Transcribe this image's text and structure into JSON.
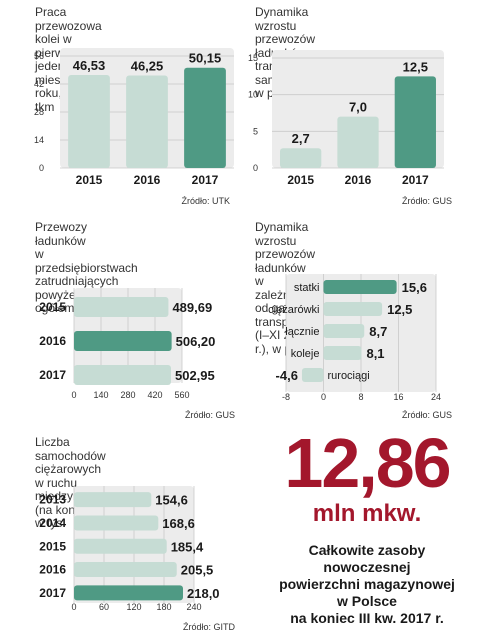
{
  "colors": {
    "light": "#c6dcd4",
    "accent": "#4f9a84",
    "panel": "#ececec",
    "highlight": "#a3172c"
  },
  "chart_data": [
    {
      "id": "c1",
      "type": "bar",
      "title": "Praca przewozowa kolei w pierwszych\njedenastu miesiącach roku, w mld tkm",
      "categories": [
        "2015",
        "2016",
        "2017"
      ],
      "values": [
        46.53,
        46.25,
        50.15
      ],
      "value_labels": [
        "46,53",
        "46,25",
        "50,15"
      ],
      "highlight_index": 2,
      "ylim": [
        0,
        56
      ],
      "yticks": [
        "0",
        "14",
        "28",
        "42",
        "56"
      ],
      "source": "Źródło: UTK"
    },
    {
      "id": "c2",
      "type": "bar",
      "title": "Dynamika wzrostu przewozów\nładunków w transporcie\nsamochodowym, w proc.",
      "categories": [
        "2015",
        "2016",
        "2017"
      ],
      "values": [
        2.7,
        7.0,
        12.5
      ],
      "value_labels": [
        "2,7",
        "7,0",
        "12,5"
      ],
      "highlight_index": 2,
      "ylim": [
        0,
        15
      ],
      "yticks": [
        "0",
        "5",
        "10",
        "15"
      ],
      "source": "Źródło: GUS"
    },
    {
      "id": "c3",
      "type": "bar",
      "orientation": "horizontal",
      "title": "Przewozy ładunków\nw przedsiębiorstwach\nzatrudniających powyżej 9 osób,\nogółem w mln ton",
      "categories": [
        "2015",
        "2016",
        "2017"
      ],
      "values": [
        489.69,
        506.2,
        502.95
      ],
      "value_labels": [
        "489,69",
        "506,20",
        "502,95"
      ],
      "highlight_index": 1,
      "xlim": [
        0,
        560
      ],
      "xticks": [
        "0",
        "140",
        "280",
        "420",
        "560"
      ],
      "source": "Źródło: GUS"
    },
    {
      "id": "c4",
      "type": "bar",
      "orientation": "horizontal",
      "title": "Dynamika wzrostu przewozów\nładunków w zależności od gałęzi\ntransportu (I–XI 2017 r.), w proc.",
      "categories": [
        "statki",
        "ciężarówki",
        "łącznie",
        "koleje",
        "rurociągi"
      ],
      "values": [
        15.6,
        12.5,
        8.7,
        8.1,
        -4.6
      ],
      "value_labels": [
        "15,6",
        "12,5",
        "8,7",
        "8,1",
        "-4,6"
      ],
      "highlight_index": 0,
      "xlim": [
        -8,
        24
      ],
      "xticks": [
        "-8",
        "0",
        "8",
        "16",
        "24"
      ],
      "source": "Źródło: GUS"
    },
    {
      "id": "c5",
      "type": "bar",
      "orientation": "horizontal",
      "title": "Liczba samochodów ciężarowych\nw ruchu międzynarodowym\n(na koniec roku), w tys.",
      "categories": [
        "2013",
        "2014",
        "2015",
        "2016",
        "2017"
      ],
      "values": [
        154.6,
        168.6,
        185.4,
        205.5,
        218.0
      ],
      "value_labels": [
        "154,6",
        "168,6",
        "185,4",
        "205,5",
        "218,0"
      ],
      "highlight_index": 4,
      "xlim": [
        0,
        240
      ],
      "xticks": [
        "0",
        "60",
        "120",
        "180",
        "240"
      ],
      "source": "Źródło: GITD"
    }
  ],
  "highlight_box": {
    "value": "12,86",
    "unit": "mln mkw.",
    "description": "Całkowite zasoby\nnowoczesnej\npowierzchni magazynowej\nw Polsce\nna koniec III kw. 2017 r."
  }
}
